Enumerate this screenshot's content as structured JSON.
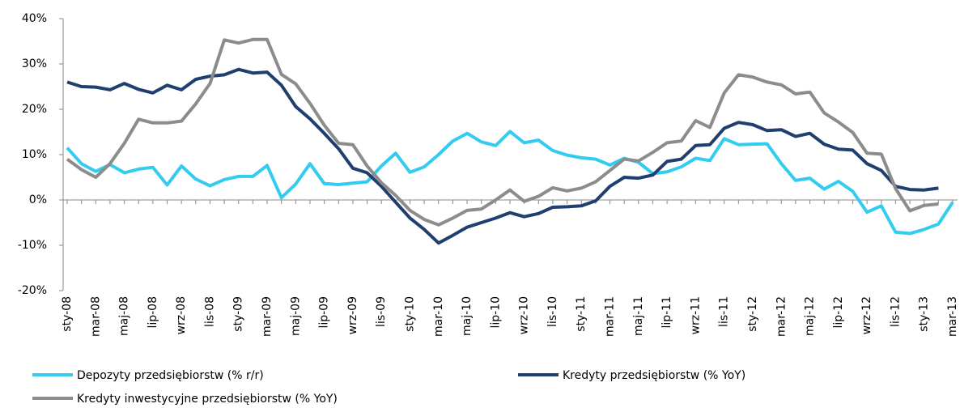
{
  "chart_data": {
    "type": "line",
    "categories": [
      "sty-08",
      null,
      "mar-08",
      null,
      "maj-08",
      null,
      "lip-08",
      null,
      "wrz-08",
      null,
      "lis-08",
      null,
      "sty-09",
      null,
      "mar-09",
      null,
      "maj-09",
      null,
      "lip-09",
      null,
      "wrz-09",
      null,
      "lis-09",
      null,
      "sty-10",
      null,
      "mar-10",
      null,
      "maj-10",
      null,
      "lip-10",
      null,
      "wrz-10",
      null,
      "lis-10",
      null,
      "sty-11",
      null,
      "mar-11",
      null,
      "maj-11",
      null,
      "lip-11",
      null,
      "wrz-11",
      null,
      "lis-11",
      null,
      "sty-12",
      null,
      "mar-12",
      null,
      "maj-12",
      null,
      "lip-12",
      null,
      "wrz-12",
      null,
      "lis-12",
      null,
      "sty-13",
      null,
      "mar-13"
    ],
    "series": [
      {
        "name": "Depozyty przedsiębiorstw  (% r/r)",
        "color": "#33ccf0",
        "values": [
          11.5,
          8,
          6.3,
          7.8,
          6,
          6.8,
          7.2,
          3.3,
          7.5,
          4.6,
          3.1,
          4.5,
          5.2,
          5.2,
          7.6,
          0.5,
          3.5,
          8,
          3.6,
          3.4,
          3.7,
          4,
          7.5,
          10.3,
          6.1,
          7.3,
          10,
          13,
          14.7,
          12.8,
          12,
          15.1,
          12.6,
          13.2,
          10.9,
          9.9,
          9.3,
          9,
          7.7,
          9.2,
          8.3,
          5.8,
          6.2,
          7.3,
          9.2,
          8.7,
          13.5,
          12.2,
          12.3,
          12.4,
          8,
          4.3,
          4.8,
          2.4,
          4.1,
          1.9,
          -2.7,
          -1.3,
          -7.1,
          -7.4,
          -6.5,
          -5.3,
          -0.5
        ]
      },
      {
        "name": "Kredyty przedsiębiorstw (% YoY)",
        "color": "#1f3f6e",
        "values": [
          26,
          25,
          24.9,
          24.3,
          25.7,
          24.4,
          23.6,
          25.3,
          24.3,
          26.6,
          27.3,
          27.6,
          28.8,
          28,
          28.2,
          25.3,
          20.6,
          17.9,
          14.7,
          11.3,
          7,
          6,
          3,
          -0.5,
          -4,
          -6.5,
          -9.5,
          -7.8,
          -6,
          -5,
          -4,
          -2.8,
          -3.7,
          -3,
          -1.6,
          -1.5,
          -1.3,
          -0.2,
          3,
          5,
          4.8,
          5.5,
          8.5,
          9,
          12,
          12.2,
          15.8,
          17.1,
          16.6,
          15.3,
          15.5,
          14,
          14.7,
          12.3,
          11.2,
          11,
          8,
          6.5,
          3,
          2.3,
          2.2,
          2.6,
          null
        ]
      },
      {
        "name": "Kredyty inwestycyjne przedsiębiorstw  (% YoY)",
        "color": "#8c8c8c",
        "values": [
          9,
          6.7,
          5,
          8,
          12.5,
          17.8,
          17,
          17,
          17.4,
          21.2,
          25.7,
          35.3,
          34.6,
          35.4,
          35.4,
          27.7,
          25.6,
          21.3,
          16.5,
          12.5,
          12.2,
          7.5,
          3.8,
          1,
          -2.3,
          -4.3,
          -5.5,
          -4,
          -2.3,
          -2,
          0,
          2.2,
          -0.3,
          0.8,
          2.7,
          2,
          2.6,
          4,
          6.5,
          9,
          8.6,
          10.5,
          12.6,
          13,
          17.5,
          16,
          23.6,
          27.6,
          27.1,
          26,
          25.4,
          23.4,
          23.8,
          19.2,
          17.2,
          14.9,
          10.3,
          10.1,
          2.5,
          -2.4,
          -1.2,
          -0.9,
          null
        ]
      }
    ],
    "ylim": [
      -20,
      40
    ],
    "yticks": [
      {
        "value": -20,
        "label": "-20%"
      },
      {
        "value": -10,
        "label": "-10%"
      },
      {
        "value": 0,
        "label": "0%"
      },
      {
        "value": 10,
        "label": "10%"
      },
      {
        "value": 20,
        "label": "20%"
      },
      {
        "value": 30,
        "label": "30%"
      },
      {
        "value": 40,
        "label": "40%"
      }
    ],
    "grid": false
  }
}
